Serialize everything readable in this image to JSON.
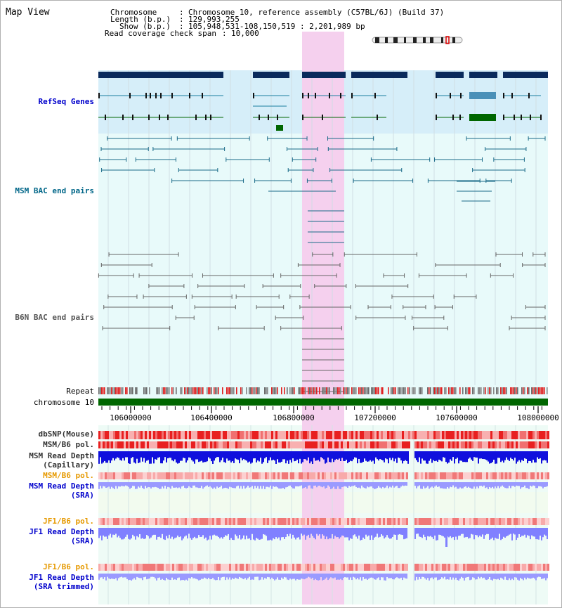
{
  "view": {
    "title": "Map View"
  },
  "header": {
    "chromosome_key": "Chromosome",
    "chromosome_value": "Chromosome 10, reference assembly (C57BL/6J) (Build 37)",
    "length_key": "Length (b.p.)",
    "length_value": "129,993,255",
    "show_key": "Show (b.p.)",
    "show_value": "105,948,531-108,150,519 : 2,201,989 bp",
    "coverage_key": "Read coverage check span",
    "coverage_value": "10,000"
  },
  "tracks": {
    "refseq": "RefSeq Genes",
    "msm_bac": "MSM BAC end pairs",
    "b6n_bac": "B6N BAC end pairs",
    "repeat": "Repeat",
    "chromosome": "chromosome 10",
    "dbsnp": "dbSNP(Mouse)",
    "msm_b6_pol_1": "MSM/B6 pol.",
    "msm_depth_cap_1": "MSM Read Depth",
    "msm_depth_cap_2": "(Capillary)",
    "msm_b6_pol_2": "MSM/B6 pol.",
    "msm_depth_sra_1": "MSM Read Depth",
    "msm_depth_sra_2": "(SRA)",
    "jf1_pol_1": "JF1/B6 pol.",
    "jf1_depth_sra_1": "JF1 Read Depth",
    "jf1_depth_sra_2": "(SRA)",
    "jf1_pol_2": "JF1/B6 pol.",
    "jf1_depth_trim_1": "JF1 Read Depth",
    "jf1_depth_trim_2": "(SRA trimmed)"
  },
  "axis": {
    "ticks": [
      "106000000",
      "106400000",
      "106800000",
      "107200000",
      "107600000",
      "108000000"
    ]
  },
  "colors": {
    "refseq_band": "#d6eef9",
    "bac_band": "#e8fafa",
    "highlight": "#f5d0ee",
    "gene_bar": "#0a2a5c",
    "refseq_line": "#1a7ea0",
    "refseq_green": "#006600",
    "msm_bac_line": "#1a6a88",
    "b6n_bac_line": "#666666",
    "chromosome_bar": "#006600",
    "snp_red": "#e83030",
    "depth_blue": "#1010dd",
    "depth_light": "#8080ff"
  }
}
